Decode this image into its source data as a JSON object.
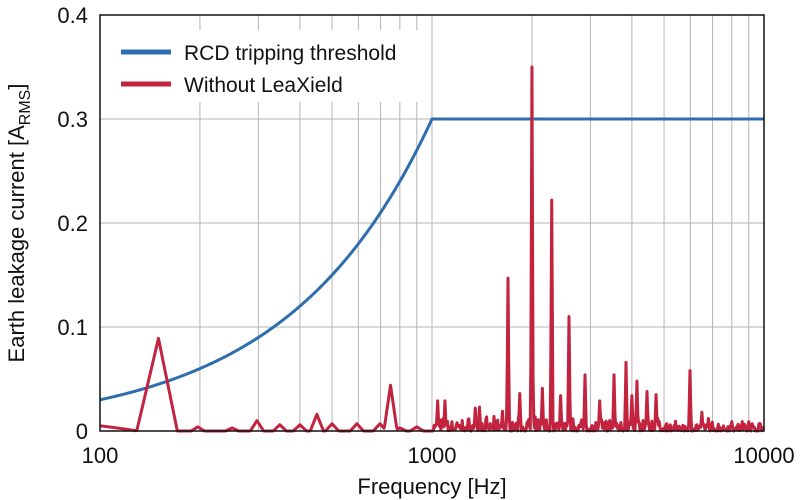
{
  "chart_data": {
    "type": "line",
    "xscale": "log",
    "xlim": [
      100,
      10000
    ],
    "ylim": [
      0,
      0.4
    ],
    "xlabel": "Frequency [Hz]",
    "ylabel": "Earth leakage current [A",
    "ylabel_sub": "RMS",
    "ylabel_end": "]",
    "xticks": [
      100,
      1000,
      10000
    ],
    "xtick_labels": [
      "100",
      "1000",
      "10000"
    ],
    "yticks": [
      0,
      0.1,
      0.2,
      0.3,
      0.4
    ],
    "ytick_labels": [
      "0",
      "0.1",
      "0.2",
      "0.3",
      "0.4"
    ],
    "grid": true,
    "legend_position": "top-left",
    "series": [
      {
        "name": "RCD tripping threshold",
        "color": "#2f6db1",
        "points": [
          [
            100,
            0.03
          ],
          [
            150,
            0.045
          ],
          [
            200,
            0.06
          ],
          [
            300,
            0.09
          ],
          [
            400,
            0.12
          ],
          [
            500,
            0.15
          ],
          [
            600,
            0.18
          ],
          [
            700,
            0.21
          ],
          [
            800,
            0.24
          ],
          [
            900,
            0.27
          ],
          [
            1000,
            0.3
          ],
          [
            10000,
            0.3
          ]
        ]
      },
      {
        "name": "Without LeaXield",
        "color": "#c2243f",
        "baseline_points": [
          [
            100,
            0.005
          ],
          [
            130,
            0.0
          ]
        ],
        "peaks": [
          [
            150,
            0.089,
            129,
            171
          ],
          [
            197,
            0.004
          ],
          [
            250,
            0.003
          ],
          [
            297,
            0.01
          ],
          [
            348,
            0.006
          ],
          [
            400,
            0.006
          ],
          [
            450,
            0.016
          ],
          [
            500,
            0.007
          ],
          [
            594,
            0.007
          ],
          [
            697,
            0.007
          ],
          [
            750,
            0.044
          ],
          [
            800,
            0.003
          ],
          [
            900,
            0.004
          ],
          [
            1040,
            0.029
          ],
          [
            1094,
            0.029
          ],
          [
            1350,
            0.022
          ],
          [
            1390,
            0.023
          ],
          [
            1630,
            0.019
          ],
          [
            1694,
            0.147
          ],
          [
            1838,
            0.036
          ],
          [
            2000,
            0.35
          ],
          [
            2150,
            0.041
          ],
          [
            2294,
            0.222
          ],
          [
            2440,
            0.034
          ],
          [
            2586,
            0.11
          ],
          [
            2890,
            0.054
          ],
          [
            3200,
            0.029
          ],
          [
            3534,
            0.054
          ],
          [
            3840,
            0.066
          ],
          [
            4000,
            0.034
          ],
          [
            4143,
            0.048
          ],
          [
            4442,
            0.038
          ],
          [
            4730,
            0.035
          ],
          [
            5985,
            0.058
          ],
          [
            6500,
            0.018
          ],
          [
            6800,
            0.012
          ],
          [
            8000,
            0.009
          ],
          [
            8600,
            0.009
          ],
          [
            9000,
            0.009
          ]
        ],
        "noise_above_hz": 1000,
        "noise_amplitude": 0.009
      }
    ]
  }
}
